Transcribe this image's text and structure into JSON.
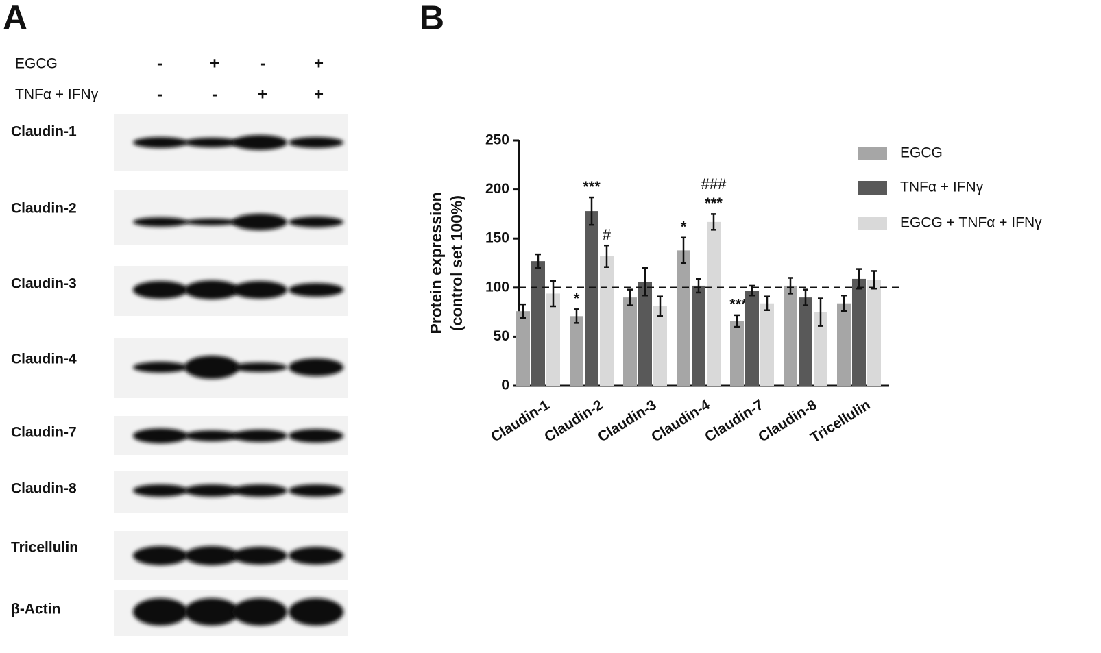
{
  "panel_a": {
    "label": "A",
    "treatments": [
      {
        "name": "EGCG",
        "signs": [
          "-",
          "+",
          "-",
          "+"
        ]
      },
      {
        "name": "TNFα + IFNγ",
        "signs": [
          "-",
          "-",
          "+",
          "+"
        ]
      }
    ],
    "blots": [
      "Claudin-1",
      "Claudin-2",
      "Claudin-3",
      "Claudin-4",
      "Claudin-7",
      "Claudin-8",
      "Tricellulin",
      "β-Actin"
    ]
  },
  "panel_b": {
    "label": "B"
  },
  "chart_data": {
    "type": "bar",
    "ylabel": [
      "Protein expression",
      "(control set 100%)"
    ],
    "categories": [
      "Claudin-1",
      "Claudin-2",
      "Claudin-3",
      "Claudin-4",
      "Claudin-7",
      "Claudin-8",
      "Tricellulin"
    ],
    "series": [
      {
        "name": "EGCG",
        "color": "#a6a6a6",
        "values": [
          76,
          71,
          90,
          138,
          66,
          102,
          84
        ],
        "errors": [
          7,
          7,
          8,
          13,
          6,
          8,
          8
        ],
        "annotations": [
          null,
          "*",
          null,
          "*",
          "***",
          null,
          null
        ]
      },
      {
        "name": "TNFα + IFNγ",
        "color": "#595959",
        "values": [
          127,
          178,
          106,
          102,
          97,
          90,
          109
        ],
        "errors": [
          7,
          14,
          14,
          7,
          5,
          8,
          10
        ],
        "annotations": [
          null,
          "***",
          null,
          null,
          null,
          null,
          null
        ]
      },
      {
        "name": "EGCG + TNFα + IFNγ",
        "color": "#d9d9d9",
        "values": [
          94,
          132,
          81,
          167,
          84,
          75,
          108
        ],
        "errors": [
          13,
          11,
          10,
          8,
          7,
          14,
          9
        ],
        "annotations": [
          null,
          "#",
          null,
          [
            "###",
            "***"
          ],
          null,
          null,
          null
        ]
      }
    ],
    "ylim": [
      0,
      250
    ],
    "yticks": [
      0,
      50,
      100,
      150,
      200,
      250
    ],
    "reference_line": 100,
    "legend": "right"
  }
}
